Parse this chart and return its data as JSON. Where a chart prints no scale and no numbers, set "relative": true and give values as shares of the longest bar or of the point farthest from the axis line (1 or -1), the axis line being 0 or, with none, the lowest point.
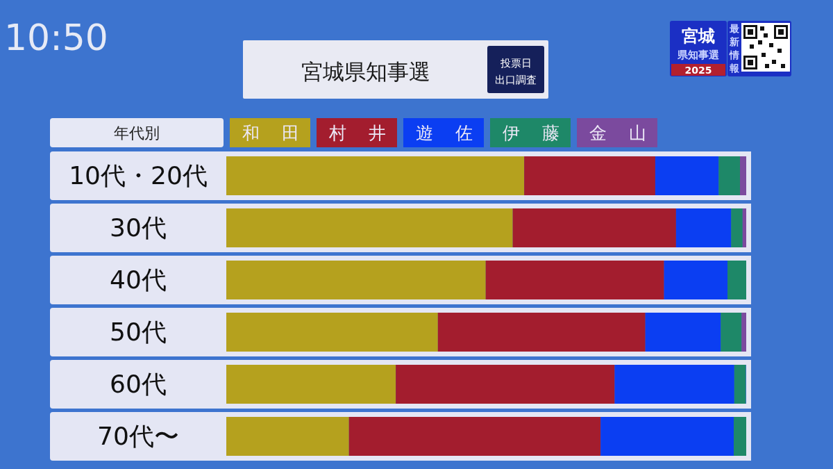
{
  "chart_data": {
    "type": "bar",
    "orientation": "horizontal",
    "stacked": true,
    "relative": true,
    "title": "宮城県知事選",
    "subtitle": "投票日出口調査",
    "ylabel": "年代別",
    "annotations": [
      "10:50",
      "宮城",
      "県知事選",
      "2025",
      "最新情報"
    ],
    "categories": [
      "10代・20代",
      "30代",
      "40代",
      "50代",
      "60代",
      "70代〜"
    ],
    "series": [
      {
        "name": "和田",
        "color": "#b5a11e",
        "values": [
          0.573,
          0.551,
          0.499,
          0.407,
          0.326,
          0.236
        ]
      },
      {
        "name": "村井",
        "color": "#a31d2e",
        "values": [
          0.252,
          0.314,
          0.343,
          0.399,
          0.421,
          0.484
        ]
      },
      {
        "name": "遊佐",
        "color": "#0b3ef2",
        "values": [
          0.122,
          0.106,
          0.122,
          0.145,
          0.23,
          0.256
        ]
      },
      {
        "name": "伊藤",
        "color": "#1e8868",
        "values": [
          0.041,
          0.022,
          0.036,
          0.04,
          0.022,
          0.024
        ]
      },
      {
        "name": "金山",
        "color": "#7b4a9e",
        "values": [
          0.012,
          0.007,
          0,
          0.009,
          0,
          0
        ]
      }
    ],
    "legend": "top"
  }
}
